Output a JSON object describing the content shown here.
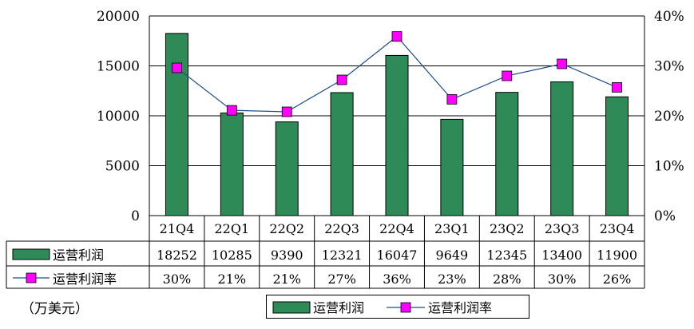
{
  "chart_data": {
    "type": "bar+line",
    "categories": [
      "21Q4",
      "22Q1",
      "22Q2",
      "22Q3",
      "22Q4",
      "23Q1",
      "23Q2",
      "23Q3",
      "23Q4"
    ],
    "series": [
      {
        "name": "运营利润",
        "type": "bar",
        "axis": "left",
        "values": [
          18252,
          10285,
          9390,
          12321,
          16047,
          9649,
          12345,
          13400,
          11900
        ],
        "table_labels": [
          "18252",
          "10285",
          "9390",
          "12321",
          "16047",
          "9649",
          "12345",
          "13400",
          "11900"
        ],
        "color": "#2e8b57"
      },
      {
        "name": "运营利润率",
        "type": "line",
        "axis": "right",
        "values": [
          29.6,
          21.1,
          20.8,
          27.2,
          35.9,
          23.3,
          28.0,
          30.4,
          25.7
        ],
        "table_labels": [
          "30%",
          "21%",
          "21%",
          "27%",
          "36%",
          "23%",
          "28%",
          "30%",
          "26%"
        ],
        "line_color": "#1f4e8c",
        "marker_color": "#ff00ff"
      }
    ],
    "y_left": {
      "min": 0,
      "max": 20000,
      "ticks": [
        "0",
        "5000",
        "10000",
        "15000",
        "20000"
      ]
    },
    "y_right": {
      "min": 0,
      "max": 40,
      "ticks": [
        "0%",
        "10%",
        "20%",
        "30%",
        "40%"
      ]
    },
    "grid": true,
    "legend_position": "bottom-center",
    "unit_note": "（万美元）"
  }
}
